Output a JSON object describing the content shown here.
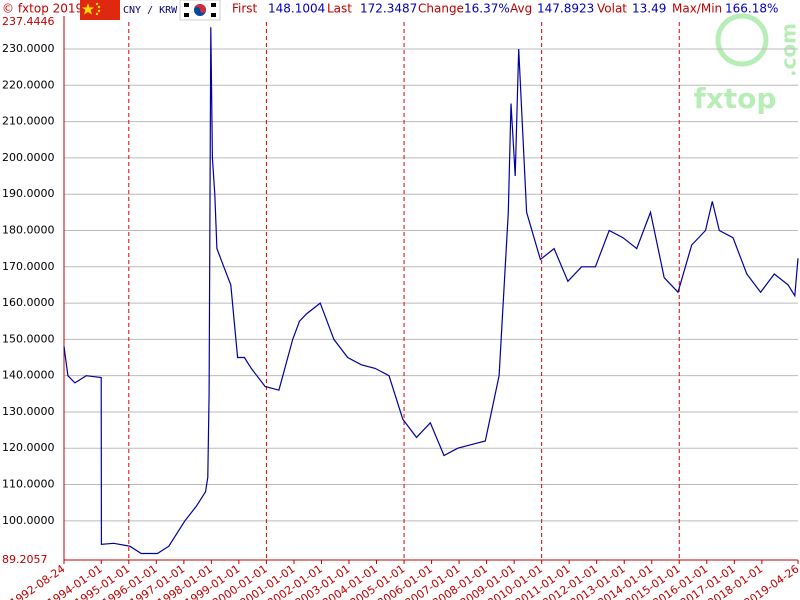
{
  "header": {
    "copyright": "© fxtop 2019",
    "pair": "CNY / KRW",
    "stats": [
      {
        "label": "First",
        "value": "148.1004"
      },
      {
        "label": "Last",
        "value": "172.3487"
      },
      {
        "label": "Change",
        "value": "16.37%"
      },
      {
        "label": "Avg",
        "value": "147.8923"
      },
      {
        "label": "Volat",
        "value": "13.49"
      },
      {
        "label": "Max/Min",
        "value": "166.18%"
      }
    ]
  },
  "watermark": {
    "brand": "fxtop",
    "domain": ".com"
  },
  "chart_data": {
    "type": "line",
    "color": "#0000a0",
    "x": [
      "1992-08-24",
      "1992-10-15",
      "1993-01-15",
      "1993-06-15",
      "1993-12-31",
      "1994-01-03",
      "1994-06-15",
      "1995-01-15",
      "1995-06-15",
      "1996-01-15",
      "1996-06-15",
      "1997-01-15",
      "1997-06-15",
      "1997-10-15",
      "1997-11-15",
      "1997-12-01",
      "1997-12-24",
      "1998-01-15",
      "1998-02-15",
      "1998-03-15",
      "1998-06-15",
      "1998-09-15",
      "1998-12-15",
      "1999-03-15",
      "1999-06-15",
      "1999-12-15",
      "2000-06-15",
      "2000-12-15",
      "2001-03-15",
      "2001-06-15",
      "2001-12-15",
      "2002-06-15",
      "2002-12-15",
      "2003-06-15",
      "2003-12-15",
      "2004-06-15",
      "2004-12-15",
      "2005-06-15",
      "2005-12-15",
      "2006-06-15",
      "2006-12-15",
      "2007-06-15",
      "2007-12-15",
      "2008-06-15",
      "2008-10-15",
      "2008-11-20",
      "2009-01-15",
      "2009-03-02",
      "2009-06-15",
      "2009-12-15",
      "2010-06-15",
      "2010-12-15",
      "2011-06-15",
      "2011-12-15",
      "2012-06-15",
      "2012-12-15",
      "2013-06-15",
      "2013-12-15",
      "2014-06-15",
      "2014-12-15",
      "2015-06-15",
      "2015-12-15",
      "2016-03-15",
      "2016-06-15",
      "2016-12-15",
      "2017-06-15",
      "2017-12-15",
      "2018-06-15",
      "2018-12-15",
      "2019-03-15",
      "2019-04-26"
    ],
    "values": [
      148.1004,
      140,
      138,
      140,
      139.5,
      93.5,
      93.8,
      93,
      91,
      91,
      93,
      100,
      104,
      108,
      112,
      135,
      236,
      200,
      190,
      175,
      170,
      165,
      145,
      145,
      142,
      137,
      136,
      150,
      155,
      157,
      160,
      150,
      145,
      143,
      142,
      140,
      128,
      123,
      127,
      118,
      120,
      121,
      122,
      140,
      185,
      215,
      195,
      230,
      185,
      172,
      175,
      166,
      170,
      170,
      180,
      178,
      175,
      185,
      167,
      163,
      176,
      180,
      188,
      180,
      178,
      168,
      163,
      168,
      165,
      162,
      172.3487
    ],
    "xlim": [
      "1992-08-24",
      "2019-04-26"
    ],
    "xticks": [
      "1992-08-24",
      "1994-01-01",
      "1995-01-01",
      "1996-01-01",
      "1997-01-01",
      "1998-01-01",
      "1999-01-01",
      "2000-01-01",
      "2001-01-01",
      "2002-01-01",
      "2003-01-01",
      "2004-01-01",
      "2005-01-01",
      "2006-01-01",
      "2007-01-01",
      "2008-01-01",
      "2009-01-01",
      "2010-01-01",
      "2011-01-01",
      "2012-01-01",
      "2013-01-01",
      "2014-01-01",
      "2015-01-01",
      "2016-01-01",
      "2017-01-01",
      "2018-01-01",
      "2019-04-26"
    ],
    "ylim": [
      89.2057,
      237.4446
    ],
    "yticks": [
      89.2057,
      {
        "value": 100,
        "label": "100.0000"
      },
      {
        "value": 110,
        "label": "110.0000"
      },
      {
        "value": 120,
        "label": "120.0000"
      },
      {
        "value": 130,
        "label": "130.0000"
      },
      {
        "value": 140,
        "label": "140.0000"
      },
      {
        "value": 150,
        "label": "150.0000"
      },
      {
        "value": 160,
        "label": "160.0000"
      },
      {
        "value": 170,
        "label": "170.0000"
      },
      {
        "value": 180,
        "label": "180.0000"
      },
      {
        "value": 190,
        "label": "190.0000"
      },
      {
        "value": 200,
        "label": "200.0000"
      },
      {
        "value": 210,
        "label": "210.0000"
      },
      {
        "value": 220,
        "label": "220.0000"
      },
      {
        "value": 230,
        "label": "230.0000"
      },
      237.4446
    ],
    "grid": true
  }
}
